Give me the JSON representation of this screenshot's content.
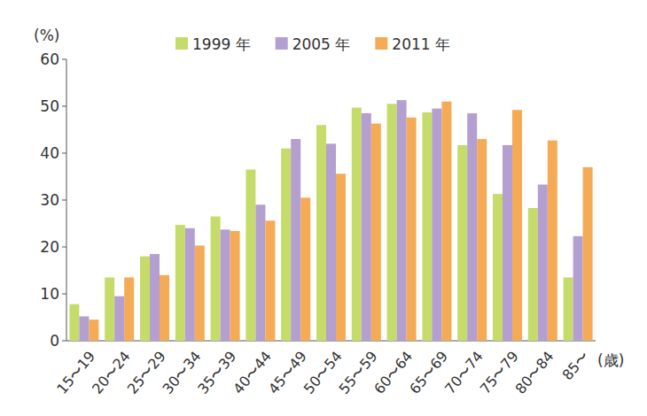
{
  "chart_data": {
    "type": "bar",
    "x_label": "(歳)",
    "y_label": "(%)",
    "categories": [
      "15〜19",
      "20〜24",
      "25〜29",
      "30〜34",
      "35〜39",
      "40〜44",
      "45〜49",
      "50〜54",
      "55〜59",
      "60〜64",
      "65〜69",
      "70〜74",
      "75〜79",
      "80〜84",
      "85〜"
    ],
    "series": [
      {
        "name": "1999 年",
        "color": "#c5dc6a",
        "values": [
          7.8,
          13.5,
          18,
          24.7,
          26.5,
          36.5,
          41,
          46,
          49.7,
          50.5,
          48.7,
          41.7,
          31.3,
          28.3,
          13.5
        ]
      },
      {
        "name": "2005 年",
        "color": "#b39fd0",
        "values": [
          5.2,
          9.5,
          18.5,
          24,
          23.7,
          29,
          43,
          42,
          48.5,
          51.3,
          49.5,
          48.5,
          41.7,
          33.3,
          22.3
        ]
      },
      {
        "name": "2011 年",
        "color": "#f5aa55",
        "values": [
          4.5,
          13.5,
          14,
          20.3,
          23.4,
          25.6,
          30.5,
          35.6,
          46.3,
          47.6,
          51,
          43,
          49.2,
          42.7,
          37
        ]
      }
    ],
    "ylim": [
      0,
      60
    ],
    "yticks": [
      0,
      10,
      20,
      30,
      40,
      50,
      60
    ],
    "grid": false,
    "legend": "top"
  }
}
